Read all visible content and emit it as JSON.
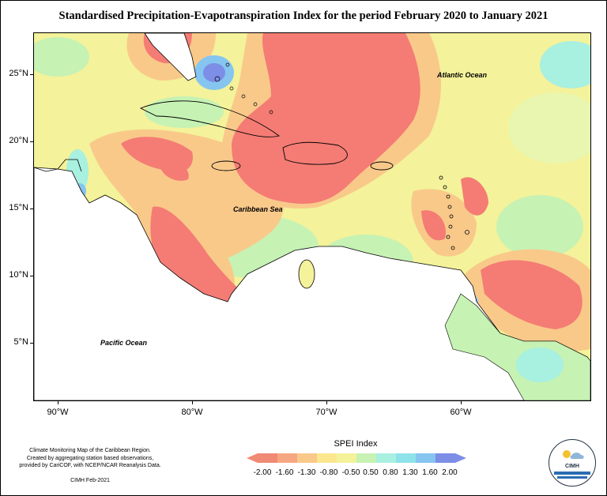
{
  "title": "Standardised Precipitation-Evapotranspiration Index for the period February 2020 to January 2021",
  "lat_labels": [
    "25°N",
    "20°N",
    "15°N",
    "10°N",
    "5°N"
  ],
  "lon_labels": [
    "90°W",
    "80°W",
    "70°W",
    "60°W"
  ],
  "oceans": {
    "atlantic": "Atlantic Ocean",
    "caribbean": "Caribbean Sea",
    "pacific": "Pacific Ocean"
  },
  "credit": {
    "line1": "Climate Monitoring Map of the Caribbean Region.",
    "line2": "Created by aggregating station based observations,",
    "line3": "provided by CariCOF, with NCEP/NCAR Reanalysis Data.",
    "date": "CIMH Feb-2021"
  },
  "legend": {
    "title": "SPEI Index",
    "labels": [
      "-2.00",
      "-1.60",
      "-1.30",
      "-0.80",
      "-0.50",
      "0.50",
      "0.80",
      "1.30",
      "1.60",
      "2.00"
    ],
    "colors": [
      "#f08a74",
      "#f6a782",
      "#f9c98a",
      "#fbe78e",
      "#f4f29a",
      "#c6f2b4",
      "#a8f0e0",
      "#8ee3ea",
      "#85c5f0",
      "#7c8ee6"
    ]
  },
  "logo": {
    "text": "CIMH"
  },
  "palette": {
    "land": "#ffffff",
    "severe_dry": "#f47c74",
    "dry": "#f9c98a",
    "moderate_dry": "#fbe08e",
    "neutral": "#f4f29a",
    "wet": "#c6f2b4",
    "very_wet": "#a8f0e0",
    "extreme_wet": "#7c8ee6"
  }
}
